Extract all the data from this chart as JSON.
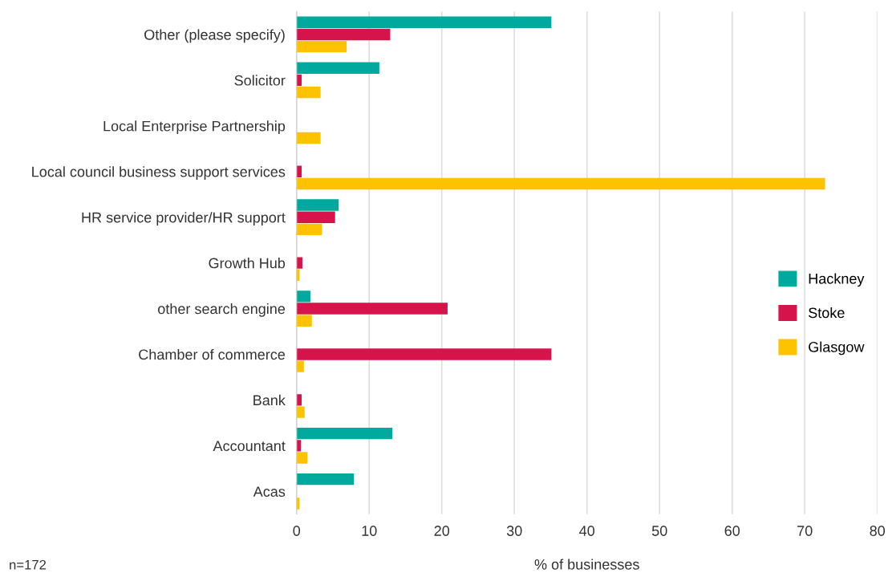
{
  "chart_data": {
    "type": "bar",
    "orientation": "horizontal",
    "xlabel": "% of businesses",
    "categories": [
      "Other (please specify)",
      "Solicitor",
      "Local Enterprise Partnership",
      "Local council business support services",
      "HR service provider/HR support",
      "Growth Hub",
      "other search engine",
      "Chamber of commerce",
      "Bank",
      "Accountant",
      "Acas"
    ],
    "series": [
      {
        "name": "Hackney",
        "color": "#00a99d",
        "values": [
          35.1,
          11.4,
          null,
          null,
          5.8,
          null,
          1.9,
          null,
          null,
          13.2,
          7.9
        ]
      },
      {
        "name": "Stoke",
        "color": "#d7134b",
        "values": [
          12.9,
          0.7,
          null,
          0.7,
          5.3,
          0.8,
          20.8,
          35.1,
          0.7,
          0.6,
          null
        ]
      },
      {
        "name": "Glasgow",
        "color": "#fdc300",
        "values": [
          6.9,
          3.3,
          3.3,
          72.8,
          3.5,
          0.4,
          2.1,
          1.0,
          1.1,
          1.5,
          0.4
        ]
      }
    ],
    "xlim": [
      0,
      80
    ],
    "xticks": [
      0,
      10,
      20,
      30,
      40,
      50,
      60,
      70,
      80
    ],
    "grid": "x",
    "legend": "right",
    "annotations": [
      "n=172"
    ]
  }
}
